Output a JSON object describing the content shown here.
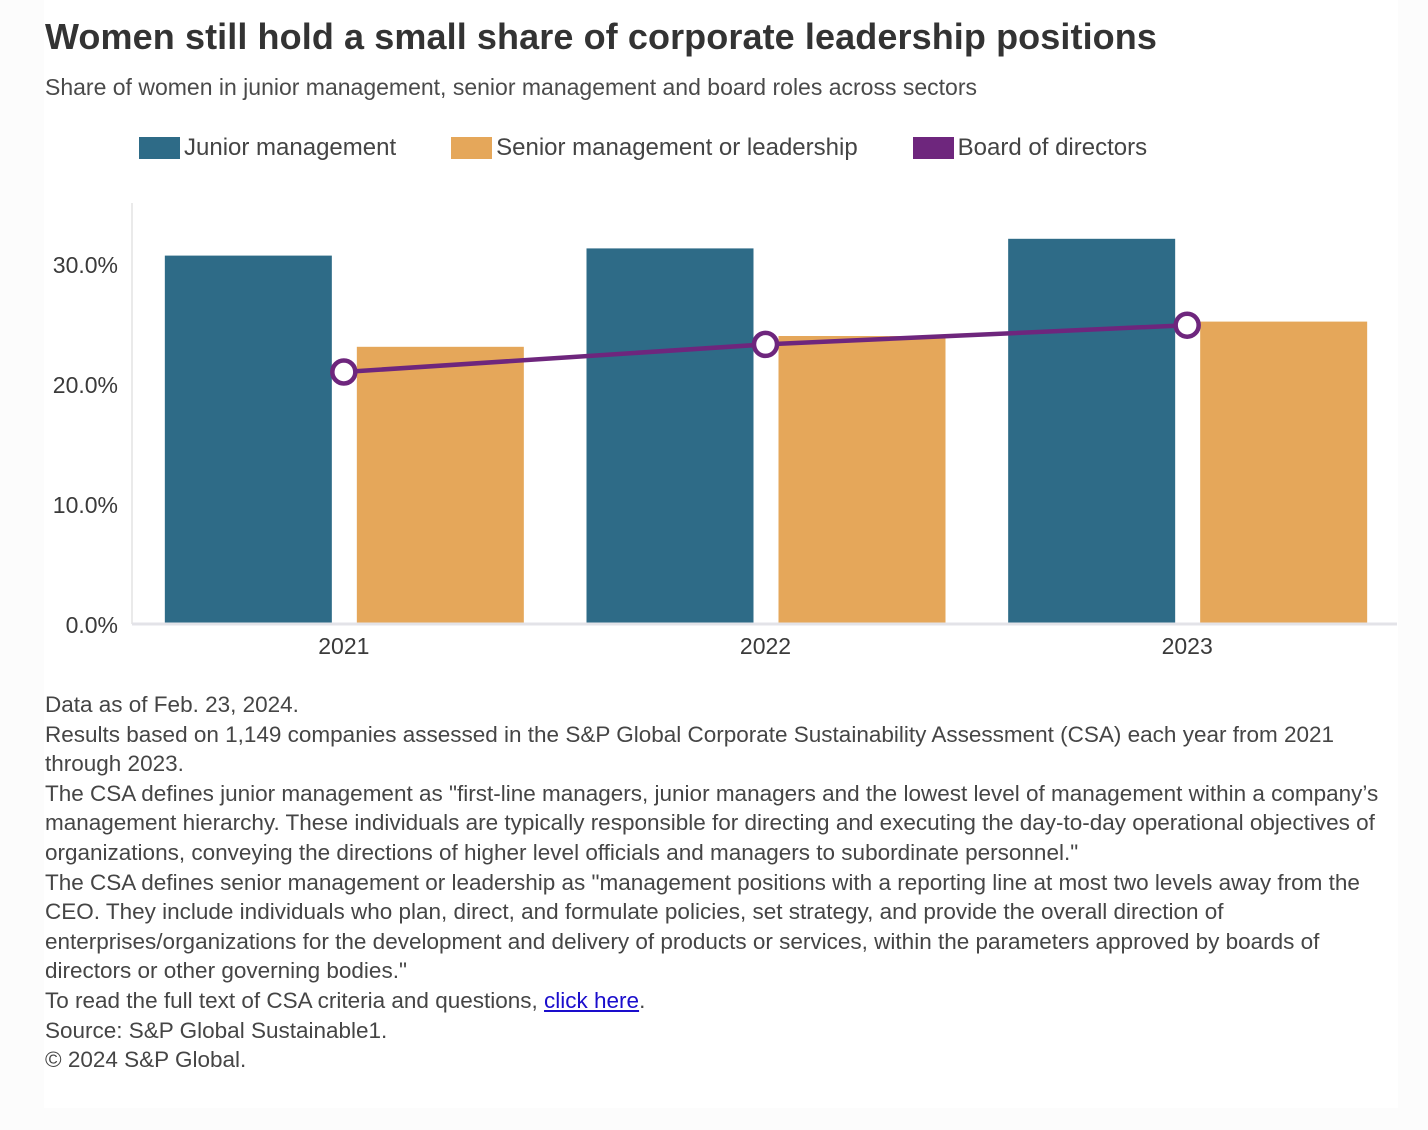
{
  "header": {
    "title": "Women still hold a small share of corporate leadership positions",
    "subtitle": "Share of women in junior management, senior management and board roles across sectors"
  },
  "legend": [
    {
      "label": "Junior management",
      "color": "#2e6b87",
      "type": "bar"
    },
    {
      "label": "Senior management or leadership",
      "color": "#e5a75a",
      "type": "bar"
    },
    {
      "label": "Board of directors",
      "color": "#6e267d",
      "type": "line"
    }
  ],
  "chart_data": {
    "type": "bar",
    "title": "Women still hold a small share of corporate leadership positions",
    "subtitle": "Share of women in junior management, senior management and board roles across sectors",
    "xlabel": "",
    "ylabel": "",
    "categories": [
      "2021",
      "2022",
      "2023"
    ],
    "series": [
      {
        "name": "Junior management",
        "type": "bar",
        "color": "#2e6b87",
        "values": [
          30.7,
          31.3,
          32.1
        ]
      },
      {
        "name": "Senior management or leadership",
        "type": "bar",
        "color": "#e5a75a",
        "values": [
          23.1,
          24.0,
          25.2
        ]
      },
      {
        "name": "Board of directors",
        "type": "line",
        "color": "#6e267d",
        "values": [
          21.0,
          23.3,
          24.9
        ]
      }
    ],
    "ylim": [
      0,
      35
    ],
    "yticks": [
      0,
      10,
      20,
      30
    ],
    "ytick_labels": [
      "0.0%",
      "10.0%",
      "20.0%",
      "30.0%"
    ],
    "grid": false,
    "legend_position": "top"
  },
  "footnotes": {
    "lines": [
      "Data as of Feb. 23, 2024.",
      "Results based on 1,149 companies assessed in the S&P Global Corporate Sustainability Assessment (CSA) each year from 2021 through 2023.",
      "The CSA defines junior management as \"first-line managers, junior managers and the lowest level of management within a company’s management hierarchy. These individuals are typically responsible for directing and executing the day-to-day operational objectives of organizations, conveying the directions of higher level officials and managers to subordinate personnel.\"",
      "The CSA defines senior management or leadership as \"management positions with a reporting line at most two levels away from the CEO. They include individuals who plan, direct, and formulate policies, set strategy, and provide the overall direction of enterprises/organizations for the development and delivery of products or services, within the parameters approved by boards of directors or other governing bodies.\""
    ],
    "link_prefix": "To read the full text of CSA criteria and questions, ",
    "link_text": "click here",
    "link_suffix": ".",
    "source": "Source: S&P Global Sustainable1.",
    "copyright": "© 2024 S&P Global."
  }
}
